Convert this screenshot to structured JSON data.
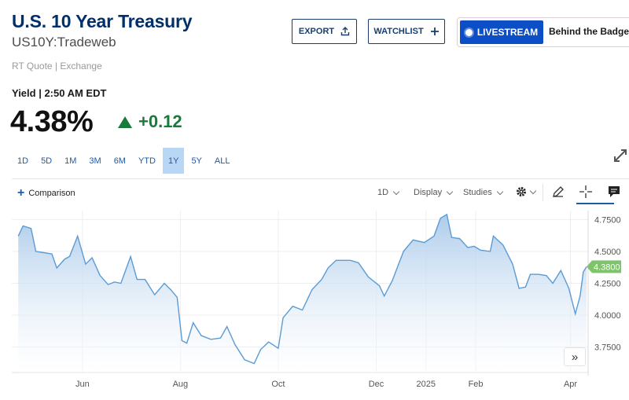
{
  "header": {
    "title": "U.S. 10 Year Treasury",
    "symbol": "US10Y:Tradeweb",
    "quote_source": "RT Quote | Exchange"
  },
  "actions": {
    "export_label": "EXPORT",
    "watchlist_label": "WATCHLIST",
    "livestream_label": "LIVESTREAM",
    "show_title": "Behind the Badge"
  },
  "quote": {
    "yield_label": "Yield | 2:50 AM EDT",
    "price": "4.38%",
    "change": "+0.12",
    "change_color": "#1a7a3b"
  },
  "ranges": [
    {
      "label": "1D",
      "active": false
    },
    {
      "label": "5D",
      "active": false
    },
    {
      "label": "1M",
      "active": false
    },
    {
      "label": "3M",
      "active": false
    },
    {
      "label": "6M",
      "active": false
    },
    {
      "label": "YTD",
      "active": false
    },
    {
      "label": "1Y",
      "active": true
    },
    {
      "label": "5Y",
      "active": false
    },
    {
      "label": "ALL",
      "active": false
    }
  ],
  "toolbar": {
    "comparison_label": "Comparison",
    "interval_label": "1D",
    "display_label": "Display",
    "studies_label": "Studies",
    "icons": [
      "gear-icon",
      "pencil-icon",
      "crosshair-icon",
      "comment-icon"
    ]
  },
  "chart_data": {
    "type": "area",
    "title": "",
    "xlabel": "",
    "ylabel": "",
    "series": [
      {
        "points": [
          [
            "2024-04-22",
            4.62
          ],
          [
            "2024-04-25",
            4.7
          ],
          [
            "2024-04-30",
            4.68
          ],
          [
            "2024-05-03",
            4.5
          ],
          [
            "2024-05-08",
            4.49
          ],
          [
            "2024-05-13",
            4.48
          ],
          [
            "2024-05-16",
            4.37
          ],
          [
            "2024-05-21",
            4.44
          ],
          [
            "2024-05-24",
            4.46
          ],
          [
            "2024-05-29",
            4.62
          ],
          [
            "2024-06-03",
            4.4
          ],
          [
            "2024-06-07",
            4.45
          ],
          [
            "2024-06-12",
            4.31
          ],
          [
            "2024-06-17",
            4.24
          ],
          [
            "2024-06-21",
            4.26
          ],
          [
            "2024-06-25",
            4.25
          ],
          [
            "2024-07-01",
            4.46
          ],
          [
            "2024-07-05",
            4.28
          ],
          [
            "2024-07-10",
            4.28
          ],
          [
            "2024-07-16",
            4.16
          ],
          [
            "2024-07-22",
            4.25
          ],
          [
            "2024-07-26",
            4.2
          ],
          [
            "2024-07-30",
            4.14
          ],
          [
            "2024-08-02",
            3.8
          ],
          [
            "2024-08-05",
            3.78
          ],
          [
            "2024-08-09",
            3.94
          ],
          [
            "2024-08-14",
            3.84
          ],
          [
            "2024-08-20",
            3.81
          ],
          [
            "2024-08-26",
            3.82
          ],
          [
            "2024-08-30",
            3.91
          ],
          [
            "2024-09-04",
            3.77
          ],
          [
            "2024-09-10",
            3.65
          ],
          [
            "2024-09-16",
            3.62
          ],
          [
            "2024-09-20",
            3.73
          ],
          [
            "2024-09-25",
            3.79
          ],
          [
            "2024-10-01",
            3.74
          ],
          [
            "2024-10-04",
            3.98
          ],
          [
            "2024-10-10",
            4.07
          ],
          [
            "2024-10-16",
            4.04
          ],
          [
            "2024-10-22",
            4.2
          ],
          [
            "2024-10-28",
            4.28
          ],
          [
            "2024-11-01",
            4.37
          ],
          [
            "2024-11-06",
            4.43
          ],
          [
            "2024-11-12",
            4.43
          ],
          [
            "2024-11-15",
            4.43
          ],
          [
            "2024-11-20",
            4.41
          ],
          [
            "2024-11-26",
            4.3
          ],
          [
            "2024-12-03",
            4.23
          ],
          [
            "2024-12-06",
            4.15
          ],
          [
            "2024-12-11",
            4.27
          ],
          [
            "2024-12-18",
            4.5
          ],
          [
            "2024-12-24",
            4.59
          ],
          [
            "2024-12-31",
            4.57
          ],
          [
            "2025-01-06",
            4.62
          ],
          [
            "2025-01-10",
            4.76
          ],
          [
            "2025-01-14",
            4.79
          ],
          [
            "2025-01-17",
            4.61
          ],
          [
            "2025-01-22",
            4.6
          ],
          [
            "2025-01-27",
            4.53
          ],
          [
            "2025-01-31",
            4.54
          ],
          [
            "2025-02-04",
            4.51
          ],
          [
            "2025-02-10",
            4.5
          ],
          [
            "2025-02-12",
            4.62
          ],
          [
            "2025-02-18",
            4.55
          ],
          [
            "2025-02-24",
            4.4
          ],
          [
            "2025-02-28",
            4.21
          ],
          [
            "2025-03-04",
            4.22
          ],
          [
            "2025-03-07",
            4.32
          ],
          [
            "2025-03-12",
            4.32
          ],
          [
            "2025-03-17",
            4.31
          ],
          [
            "2025-03-21",
            4.25
          ],
          [
            "2025-03-26",
            4.35
          ],
          [
            "2025-03-31",
            4.21
          ],
          [
            "2025-04-04",
            4.01
          ],
          [
            "2025-04-07",
            4.15
          ],
          [
            "2025-04-09",
            4.34
          ],
          [
            "2025-04-11",
            4.38
          ]
        ]
      }
    ],
    "x_ticks": [
      {
        "date": "2024-06-01",
        "label": "Jun"
      },
      {
        "date": "2024-08-01",
        "label": "Aug"
      },
      {
        "date": "2024-10-01",
        "label": "Oct"
      },
      {
        "date": "2024-12-01",
        "label": "Dec"
      },
      {
        "date": "2025-01-01",
        "label": "2025"
      },
      {
        "date": "2025-02-01",
        "label": "Feb"
      },
      {
        "date": "2025-04-01",
        "label": "Apr"
      }
    ],
    "y_ticks": [
      {
        "value": 3.75,
        "label": "3.7500"
      },
      {
        "value": 4.0,
        "label": "4.0000"
      },
      {
        "value": 4.25,
        "label": "4.2500"
      },
      {
        "value": 4.5,
        "label": "4.5000"
      },
      {
        "value": 4.75,
        "label": "4.7500"
      }
    ],
    "ylim": [
      3.55,
      4.82
    ],
    "xlim": [
      "2024-04-18",
      "2025-04-12"
    ],
    "grid": true,
    "last_value": 4.38,
    "last_value_label": "4.3800",
    "line_color": "#5a9bd5",
    "fill_top_color": "#a9c9ea",
    "tag_color": "#7fc46c"
  }
}
